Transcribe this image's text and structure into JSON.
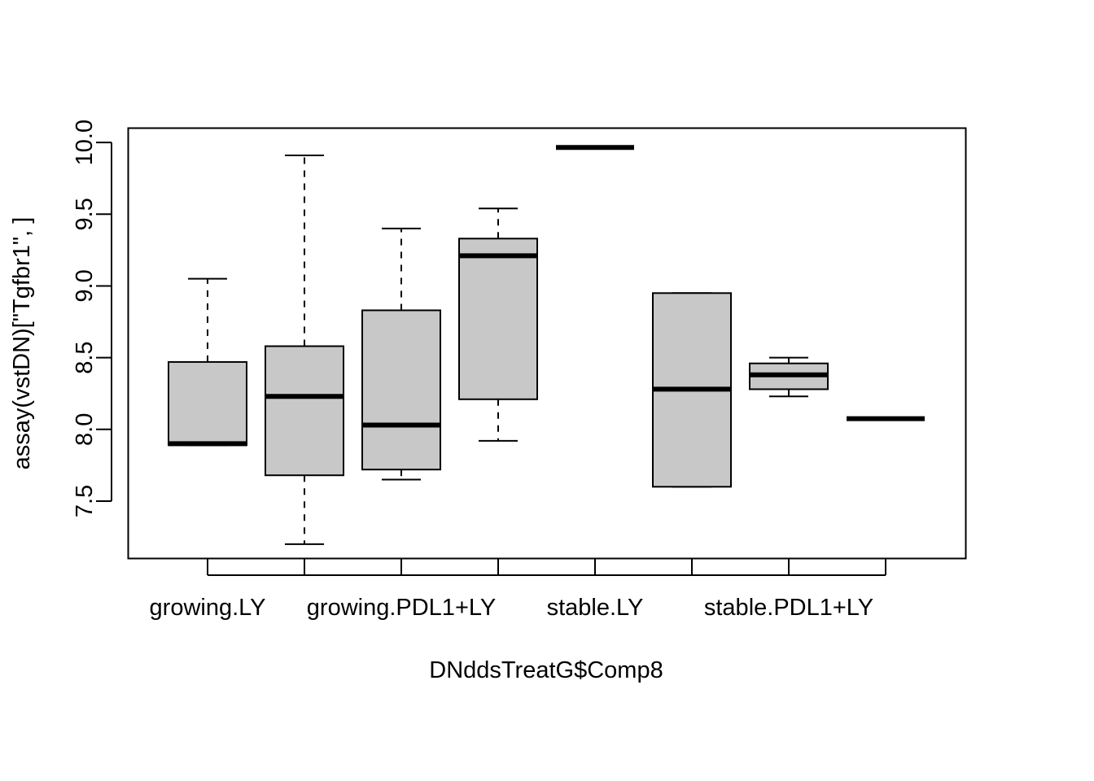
{
  "chart_data": {
    "type": "boxplot",
    "title": "",
    "xlabel": "DNddsTreatG$Comp8",
    "ylabel": "assay(vstDN)[\"Tgfbr1\", ]",
    "ylim": [
      7.1,
      10.1
    ],
    "y_ticks": [
      "7.5",
      "8.0",
      "8.5",
      "9.0",
      "9.5",
      "10.0"
    ],
    "x_tick_labels": [
      "growing.LY",
      "",
      "growing.PDL1+LY",
      "",
      "stable.LY",
      "",
      "stable.PDL1+LY",
      ""
    ],
    "grid": false,
    "legend": "none",
    "colors": {
      "box_fill": "#c8c8c8",
      "stroke": "#000000",
      "background": "#ffffff"
    },
    "boxes": [
      {
        "whisker_low": 7.89,
        "q1": 7.89,
        "median": 7.9,
        "q3": 8.47,
        "whisker_high": 9.05
      },
      {
        "whisker_low": 7.2,
        "q1": 7.68,
        "median": 8.23,
        "q3": 8.58,
        "whisker_high": 9.91
      },
      {
        "whisker_low": 7.65,
        "q1": 7.72,
        "median": 8.03,
        "q3": 8.83,
        "whisker_high": 9.4
      },
      {
        "whisker_low": 7.92,
        "q1": 8.21,
        "median": 9.21,
        "q3": 9.33,
        "whisker_high": 9.54
      },
      {
        "whisker_low": 9.965,
        "q1": 9.965,
        "median": 9.965,
        "q3": 9.965,
        "whisker_high": 9.965
      },
      {
        "whisker_low": 7.6,
        "q1": 7.6,
        "median": 8.28,
        "q3": 8.95,
        "whisker_high": 8.95
      },
      {
        "whisker_low": 8.23,
        "q1": 8.28,
        "median": 8.38,
        "q3": 8.46,
        "whisker_high": 8.5
      },
      {
        "whisker_low": 8.075,
        "q1": 8.075,
        "median": 8.075,
        "q3": 8.075,
        "whisker_high": 8.075
      }
    ]
  }
}
